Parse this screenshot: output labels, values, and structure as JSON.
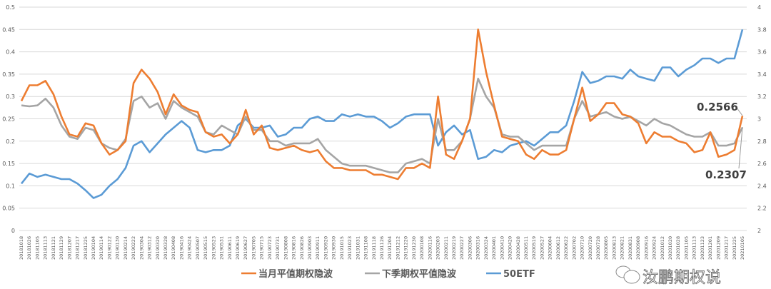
{
  "chart_data": {
    "type": "line",
    "title": "",
    "xlabel": "",
    "ylabel_left": "",
    "ylabel_right": "",
    "ylim_left": [
      0,
      0.5
    ],
    "ylim_right": [
      2,
      4
    ],
    "yticks_left": [
      "0",
      "0.05",
      "0.1",
      "0.15",
      "0.2",
      "0.25",
      "0.3",
      "0.35",
      "0.4",
      "0.45",
      "0.5"
    ],
    "yticks_right": [
      "2",
      "2.2",
      "2.4",
      "2.6",
      "2.8",
      "3",
      "3.2",
      "3.4",
      "3.6",
      "3.8",
      "4"
    ],
    "grid": true,
    "legend_position": "bottom",
    "x": [
      "20181018",
      "20181026",
      "20181105",
      "20181113",
      "20181121",
      "20181129",
      "20181207",
      "20181217",
      "20181225",
      "20190104",
      "20190114",
      "20190122",
      "20190130",
      "20190214",
      "20190222",
      "20190304",
      "20190312",
      "20190320",
      "20190328",
      "20190408",
      "20190416",
      "20190424",
      "20190507",
      "20190515",
      "20190523",
      "20190531",
      "20190611",
      "20190619",
      "20190627",
      "20190705",
      "20190715",
      "20190723",
      "20190731",
      "20190808",
      "20190816",
      "20190826",
      "20190903",
      "20190911",
      "20190920",
      "20190930",
      "20191015",
      "20191023",
      "20191031",
      "20191108",
      "20191118",
      "20191126",
      "20191204",
      "20191212",
      "20191220",
      "20191230",
      "20200108",
      "20200116",
      "20200203",
      "20200211",
      "20200219",
      "20200227",
      "20200306",
      "20200316",
      "20200324",
      "20200401",
      "20200410",
      "20200420",
      "20200428",
      "20200511",
      "20200519",
      "20200527",
      "20200604",
      "20200612",
      "20200622",
      "20200702",
      "20200710",
      "20200720",
      "20200728",
      "20200805",
      "20200813",
      "20200821",
      "20200831",
      "20200908",
      "20200916",
      "20200924",
      "20201012",
      "20201020",
      "20201028",
      "20201105",
      "20201113",
      "20201123",
      "20201201",
      "20201209",
      "20201217",
      "20201225",
      "20210105"
    ],
    "series": [
      {
        "name": "当月平值期权隐波",
        "axis": "left",
        "color": "#ED7D31",
        "values": [
          0.29,
          0.325,
          0.325,
          0.335,
          0.305,
          0.255,
          0.215,
          0.21,
          0.24,
          0.235,
          0.195,
          0.17,
          0.18,
          0.2,
          0.33,
          0.36,
          0.34,
          0.31,
          0.26,
          0.305,
          0.28,
          0.27,
          0.265,
          0.22,
          0.21,
          0.215,
          0.195,
          0.215,
          0.27,
          0.215,
          0.235,
          0.185,
          0.18,
          0.185,
          0.19,
          0.18,
          0.175,
          0.18,
          0.155,
          0.14,
          0.14,
          0.135,
          0.135,
          0.135,
          0.125,
          0.125,
          0.12,
          0.115,
          0.14,
          0.14,
          0.15,
          0.14,
          0.3,
          0.17,
          0.16,
          0.2,
          0.25,
          0.45,
          0.355,
          0.28,
          0.21,
          0.205,
          0.2,
          0.17,
          0.16,
          0.18,
          0.17,
          0.17,
          0.18,
          0.25,
          0.32,
          0.245,
          0.26,
          0.285,
          0.285,
          0.26,
          0.255,
          0.24,
          0.195,
          0.22,
          0.21,
          0.21,
          0.2,
          0.195,
          0.175,
          0.18,
          0.22,
          0.165,
          0.17,
          0.18,
          0.2566
        ]
      },
      {
        "name": "下季期权平值隐波",
        "axis": "left",
        "color": "#A5A5A5",
        "values": [
          0.28,
          0.278,
          0.28,
          0.295,
          0.275,
          0.235,
          0.21,
          0.205,
          0.23,
          0.225,
          0.195,
          0.185,
          0.18,
          0.205,
          0.29,
          0.3,
          0.275,
          0.285,
          0.25,
          0.29,
          0.275,
          0.265,
          0.255,
          0.22,
          0.215,
          0.235,
          0.225,
          0.215,
          0.255,
          0.225,
          0.225,
          0.2,
          0.2,
          0.19,
          0.195,
          0.195,
          0.195,
          0.205,
          0.18,
          0.165,
          0.15,
          0.145,
          0.145,
          0.145,
          0.14,
          0.135,
          0.13,
          0.13,
          0.15,
          0.155,
          0.16,
          0.15,
          0.25,
          0.18,
          0.18,
          0.2,
          0.25,
          0.34,
          0.3,
          0.275,
          0.215,
          0.21,
          0.21,
          0.195,
          0.18,
          0.19,
          0.19,
          0.19,
          0.19,
          0.25,
          0.29,
          0.255,
          0.26,
          0.265,
          0.255,
          0.25,
          0.255,
          0.245,
          0.235,
          0.25,
          0.24,
          0.235,
          0.225,
          0.215,
          0.21,
          0.21,
          0.22,
          0.19,
          0.19,
          0.195,
          0.2307
        ]
      },
      {
        "name": "50ETF",
        "axis": "right",
        "color": "#5B9BD5",
        "values": [
          2.42,
          2.51,
          2.48,
          2.5,
          2.48,
          2.46,
          2.46,
          2.42,
          2.36,
          2.29,
          2.32,
          2.4,
          2.46,
          2.56,
          2.76,
          2.8,
          2.7,
          2.78,
          2.86,
          2.92,
          2.98,
          2.92,
          2.72,
          2.7,
          2.72,
          2.72,
          2.76,
          2.94,
          3.0,
          2.92,
          2.92,
          2.94,
          2.84,
          2.86,
          2.92,
          2.92,
          3.0,
          3.02,
          2.98,
          2.98,
          3.04,
          3.02,
          3.04,
          3.02,
          3.02,
          2.98,
          2.92,
          2.96,
          3.02,
          3.04,
          3.04,
          3.04,
          2.76,
          2.88,
          2.94,
          2.86,
          2.9,
          2.64,
          2.66,
          2.72,
          2.7,
          2.76,
          2.78,
          2.8,
          2.76,
          2.82,
          2.88,
          2.88,
          2.94,
          3.16,
          3.42,
          3.32,
          3.34,
          3.38,
          3.38,
          3.36,
          3.44,
          3.38,
          3.36,
          3.34,
          3.46,
          3.46,
          3.38,
          3.44,
          3.48,
          3.54,
          3.54,
          3.5,
          3.54,
          3.54,
          3.8
        ]
      }
    ],
    "annotations": [
      "0.2566",
      "0.2307"
    ]
  },
  "watermark": "汝鹏期权说"
}
